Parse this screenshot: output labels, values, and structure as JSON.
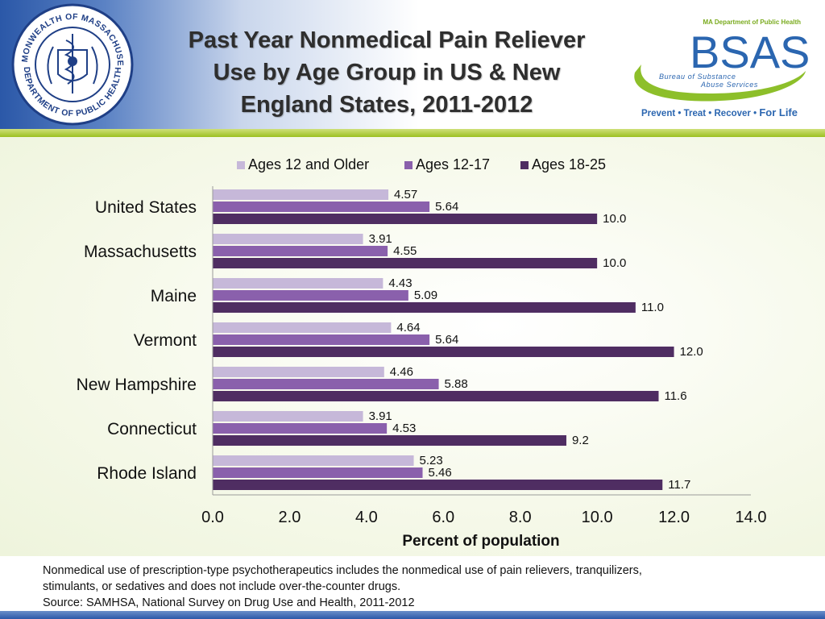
{
  "header": {
    "title_lines": [
      "Past Year Nonmedical Pain Reliever",
      "Use by Age Group in US & New",
      "England States, 2011-2012"
    ],
    "seal": {
      "top_text": "COMMONWEALTH OF MASSACHUSETTS",
      "bottom_text": "DEPARTMENT OF PUBLIC HEALTH"
    },
    "logo": {
      "agency": "MA Department of Public Health",
      "acronym": "BSAS",
      "name_line1": "Bureau of Substance",
      "name_line2": "Abuse Services",
      "tagline": "Prevent • Treat • Recover •",
      "tagline_emph": "For Life"
    }
  },
  "colors": {
    "header_blue": "#2b58a8",
    "accent_green": "#9cc021",
    "logo_blue": "#2b66b0",
    "series": [
      "#c6b8d9",
      "#8a60ac",
      "#4f2d62"
    ]
  },
  "chart_data": {
    "type": "bar",
    "orientation": "horizontal",
    "categories": [
      "United States",
      "Massachusetts",
      "Maine",
      "Vermont",
      "New Hampshire",
      "Connecticut",
      "Rhode Island"
    ],
    "series": [
      {
        "name": "Ages 12 and Older",
        "values": [
          4.57,
          3.91,
          4.43,
          4.64,
          4.46,
          3.91,
          5.23
        ],
        "labels": [
          "4.57",
          "3.91",
          "4.43",
          "4.64",
          "4.46",
          "3.91",
          "5.23"
        ]
      },
      {
        "name": "Ages 12-17",
        "values": [
          5.64,
          4.55,
          5.09,
          5.64,
          5.88,
          4.53,
          5.46
        ],
        "labels": [
          "5.64",
          "4.55",
          "5.09",
          "5.64",
          "5.88",
          "4.53",
          "5.46"
        ]
      },
      {
        "name": "Ages 18-25",
        "values": [
          10.0,
          10.0,
          11.0,
          12.0,
          11.6,
          9.2,
          11.7
        ],
        "labels": [
          "10.0",
          "10.0",
          "11.0",
          "12.0",
          "11.6",
          "9.2",
          "11.7"
        ]
      }
    ],
    "xlabel": "Percent of population",
    "xlim": [
      0,
      14
    ],
    "xticks": [
      0,
      2,
      4,
      6,
      8,
      10,
      12,
      14
    ],
    "xtick_labels": [
      "0.0",
      "2.0",
      "4.0",
      "6.0",
      "8.0",
      "10.0",
      "12.0",
      "14.0"
    ],
    "grid": false,
    "legend_position": "top"
  },
  "footnote": {
    "lines": [
      "Nonmedical use of prescription-type psychotherapeutics includes the nonmedical use of pain relievers, tranquilizers,",
      "stimulants, or sedatives and does not include over-the-counter drugs.",
      "Source: SAMHSA, National Survey on Drug Use and Health, 2011-2012"
    ]
  }
}
